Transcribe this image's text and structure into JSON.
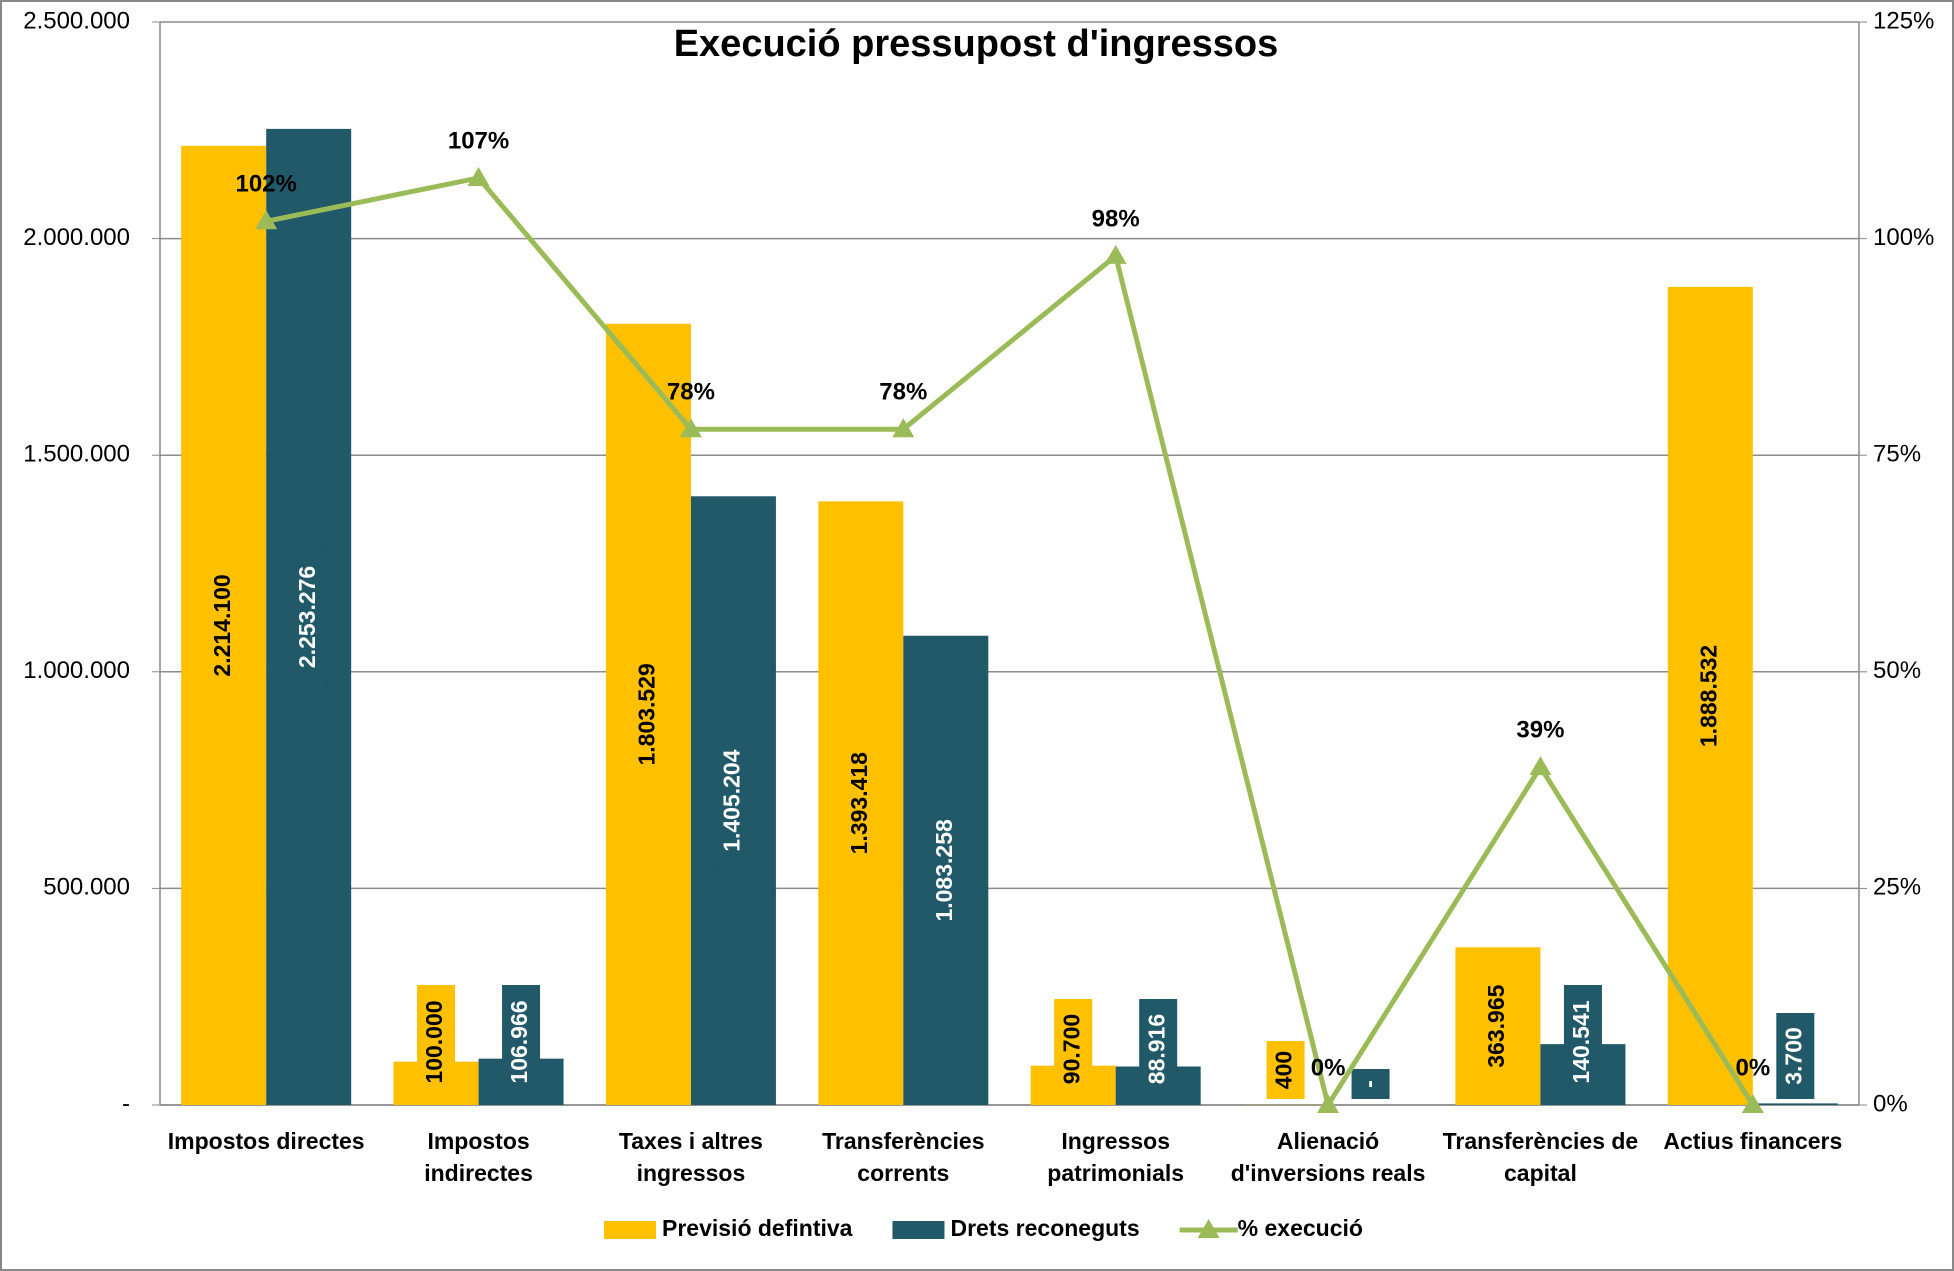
{
  "chart_data": {
    "type": "bar-line",
    "title": "Execució pressupost d'ingressos",
    "categories": [
      "Impostos directes",
      "Impostos indirectes",
      "Taxes i altres ingressos",
      "Transferències corrents",
      "Ingressos patrimonials",
      "Alienació d'inversions reals",
      "Transferències de capital",
      "Actius financers"
    ],
    "series": [
      {
        "name": "Previsió defintiva",
        "color": "#ffc000",
        "type": "bar",
        "values": [
          2214100,
          100000,
          1803529,
          1393418,
          90700,
          400,
          363965,
          1888532
        ],
        "value_labels": [
          "2.214.100",
          "100.000",
          "1.803.529",
          "1.393.418",
          "90.700",
          "400",
          "363.965",
          "1.888.532"
        ]
      },
      {
        "name": "Drets reconeguts",
        "color": "#215968",
        "type": "bar",
        "values": [
          2253276,
          106966,
          1405204,
          1083258,
          88916,
          0,
          140541,
          3700
        ],
        "value_labels": [
          "2.253.276",
          "106.966",
          "1.405.204",
          "1.083.258",
          "88.916",
          "-",
          "140.541",
          "3.700"
        ]
      },
      {
        "name": "% execució",
        "color": "#9bbb59",
        "type": "line",
        "axis": "y2",
        "values": [
          102,
          107,
          78,
          78,
          98,
          0,
          39,
          0
        ],
        "value_labels": [
          "102%",
          "107%",
          "78%",
          "78%",
          "98%",
          "0%",
          "39%",
          "0%"
        ]
      }
    ],
    "ylim": [
      0,
      2500000
    ],
    "yticks": [
      {
        "value": 0,
        "label": "-"
      },
      {
        "value": 500000,
        "label": "500.000"
      },
      {
        "value": 1000000,
        "label": "1.000.000"
      },
      {
        "value": 1500000,
        "label": "1.500.000"
      },
      {
        "value": 2000000,
        "label": "2.000.000"
      },
      {
        "value": 2500000,
        "label": "2.500.000"
      }
    ],
    "y2lim": [
      0,
      125
    ],
    "y2ticks": [
      {
        "value": 0,
        "label": "0%"
      },
      {
        "value": 25,
        "label": "25%"
      },
      {
        "value": 50,
        "label": "50%"
      },
      {
        "value": 75,
        "label": "75%"
      },
      {
        "value": 100,
        "label": "100%"
      },
      {
        "value": 125,
        "label": "125%"
      }
    ],
    "grid": true,
    "legend": "bottom"
  }
}
